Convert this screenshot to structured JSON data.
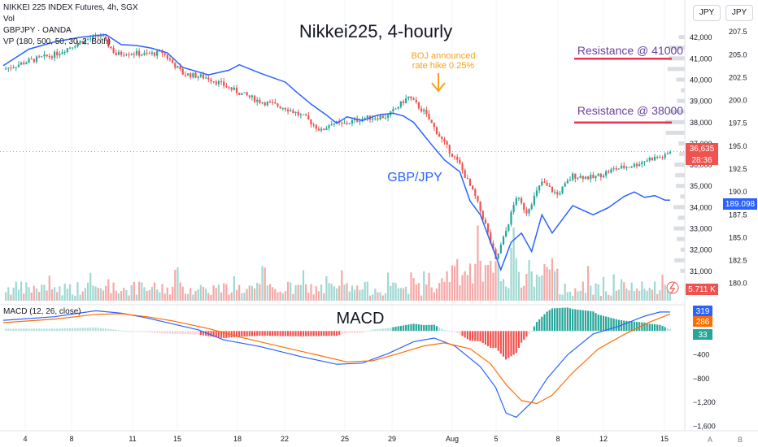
{
  "header": {
    "symbol_line": "NIKKEI 225 INDEX Futures, 4h, SGX",
    "vol_label": "Vol",
    "gbpjpy_label": "GBPJPY · OANDA",
    "vp_label": "VP (180, 500, 50, 30, 2, Both)",
    "macd_label": "MACD (12, 26, close)"
  },
  "units": {
    "left": "JPY",
    "right": "JPY"
  },
  "bottom_letters": [
    "A",
    "B"
  ],
  "annotations": {
    "title": "Nikkei225, 4-hourly",
    "boj_line1": "BOJ announced",
    "boj_line2": "rate hike 0.25%",
    "gbpjpy": "GBP/JPY",
    "res41000": "Resistance @ 41000",
    "res38000": "Resistance @ 38000",
    "macd_title": "MACD"
  },
  "colors": {
    "up": "#26a69a",
    "down": "#ef5350",
    "gbpjpy": "#2962ff",
    "macd": "#2962ff",
    "signal": "#ff6d00",
    "resistance": "#e8344e",
    "annotation": "#f7a21b",
    "res_text": "#6a3fa0"
  },
  "chart_data": [
    {
      "type": "candlestick",
      "name": "NIKKEI 225 INDEX Futures",
      "y_axis_ticks": [
        31000,
        32000,
        33000,
        34000,
        35000,
        36000,
        37000,
        38000,
        39000,
        40000,
        41000,
        42000
      ],
      "ylim": [
        30000,
        43000
      ],
      "x_tick_labels": [
        "4",
        "8",
        "11",
        "15",
        "18",
        "22",
        "25",
        "29",
        "Aug",
        "5",
        "8",
        "12",
        "15"
      ],
      "last_price": "36,635",
      "countdown": "28:36",
      "resistance_levels": [
        41000,
        38000
      ],
      "anchors": [
        [
          0,
          40500
        ],
        [
          10,
          40900
        ],
        [
          20,
          41200
        ],
        [
          30,
          41800
        ],
        [
          38,
          42100
        ],
        [
          44,
          41200
        ],
        [
          48,
          41300
        ],
        [
          56,
          41200
        ],
        [
          62,
          41300
        ],
        [
          70,
          40300
        ],
        [
          80,
          40100
        ],
        [
          92,
          39400
        ],
        [
          100,
          39000
        ],
        [
          110,
          38700
        ],
        [
          118,
          38200
        ],
        [
          124,
          37600
        ],
        [
          128,
          38000
        ],
        [
          132,
          37900
        ],
        [
          140,
          38200
        ],
        [
          150,
          38300
        ],
        [
          156,
          39000
        ],
        [
          158,
          39200
        ],
        [
          164,
          38500
        ],
        [
          172,
          37000
        ],
        [
          178,
          36000
        ],
        [
          184,
          34500
        ],
        [
          188,
          33200
        ],
        [
          192,
          31500
        ],
        [
          196,
          32900
        ],
        [
          200,
          34500
        ],
        [
          204,
          33800
        ],
        [
          210,
          35200
        ],
        [
          216,
          34600
        ],
        [
          222,
          35500
        ],
        [
          230,
          35400
        ],
        [
          238,
          35800
        ],
        [
          246,
          36000
        ],
        [
          252,
          36300
        ],
        [
          258,
          36400
        ],
        [
          260,
          36650
        ]
      ]
    },
    {
      "type": "line",
      "name": "GBP/JPY",
      "y_axis_ticks": [
        180.0,
        182.5,
        185.0,
        187.5,
        190.0,
        192.5,
        195.0,
        197.5,
        200.0,
        202.5,
        205.0,
        207.5
      ],
      "ylim": [
        179.0,
        209.2
      ],
      "last_value": "189.098",
      "points": [
        [
          0,
          203.8
        ],
        [
          10,
          205.6
        ],
        [
          20,
          206.4
        ],
        [
          30,
          206.9
        ],
        [
          40,
          207.2
        ],
        [
          46,
          206.1
        ],
        [
          52,
          206.0
        ],
        [
          58,
          205.7
        ],
        [
          64,
          205.2
        ],
        [
          70,
          203.6
        ],
        [
          80,
          202.8
        ],
        [
          88,
          203.3
        ],
        [
          92,
          203.9
        ],
        [
          100,
          203.0
        ],
        [
          110,
          202.0
        ],
        [
          114,
          201.0
        ],
        [
          120,
          199.6
        ],
        [
          126,
          198.4
        ],
        [
          130,
          197.5
        ],
        [
          134,
          198.2
        ],
        [
          140,
          197.8
        ],
        [
          146,
          198.4
        ],
        [
          152,
          198.6
        ],
        [
          156,
          198.3
        ],
        [
          160,
          197.6
        ],
        [
          166,
          195.5
        ],
        [
          172,
          193.5
        ],
        [
          178,
          192.2
        ],
        [
          182,
          189.0
        ],
        [
          186,
          187.5
        ],
        [
          190,
          184.5
        ],
        [
          194,
          181.5
        ],
        [
          198,
          184.5
        ],
        [
          202,
          185.5
        ],
        [
          206,
          183.5
        ],
        [
          210,
          187.5
        ],
        [
          214,
          185.5
        ],
        [
          218,
          187.0
        ],
        [
          222,
          188.5
        ],
        [
          226,
          188.0
        ],
        [
          230,
          187.5
        ],
        [
          236,
          188.3
        ],
        [
          242,
          189.5
        ],
        [
          246,
          190.0
        ],
        [
          250,
          189.4
        ],
        [
          254,
          189.6
        ],
        [
          258,
          189.1
        ],
        [
          260,
          189.1
        ]
      ]
    },
    {
      "type": "bar",
      "name": "Vol",
      "last_value": "5.711 K"
    },
    {
      "type": "macd",
      "name": "MACD (12, 26, close)",
      "y_axis_ticks": [
        -400,
        -800,
        -1200,
        -1600
      ],
      "y_tick_labels": [
        "−400",
        "−800",
        "−1,200",
        "−1,600"
      ],
      "ylim": [
        -1650,
        400
      ],
      "macd_value": "319",
      "signal_value": "286",
      "histogram_value": "33",
      "macd_line": [
        [
          0,
          180
        ],
        [
          20,
          240
        ],
        [
          36,
          340
        ],
        [
          46,
          300
        ],
        [
          56,
          220
        ],
        [
          62,
          160
        ],
        [
          76,
          20
        ],
        [
          86,
          -150
        ],
        [
          100,
          -260
        ],
        [
          116,
          -430
        ],
        [
          130,
          -560
        ],
        [
          140,
          -540
        ],
        [
          150,
          -380
        ],
        [
          160,
          -180
        ],
        [
          168,
          -120
        ],
        [
          176,
          -250
        ],
        [
          186,
          -600
        ],
        [
          192,
          -950
        ],
        [
          196,
          -1380
        ],
        [
          200,
          -1450
        ],
        [
          206,
          -1200
        ],
        [
          212,
          -800
        ],
        [
          220,
          -400
        ],
        [
          230,
          -50
        ],
        [
          240,
          80
        ],
        [
          250,
          250
        ],
        [
          256,
          320
        ],
        [
          260,
          319
        ]
      ],
      "signal_line": [
        [
          0,
          140
        ],
        [
          20,
          200
        ],
        [
          36,
          280
        ],
        [
          46,
          290
        ],
        [
          56,
          240
        ],
        [
          66,
          170
        ],
        [
          80,
          40
        ],
        [
          92,
          -100
        ],
        [
          108,
          -260
        ],
        [
          122,
          -400
        ],
        [
          134,
          -520
        ],
        [
          144,
          -500
        ],
        [
          154,
          -380
        ],
        [
          164,
          -250
        ],
        [
          172,
          -200
        ],
        [
          182,
          -300
        ],
        [
          190,
          -550
        ],
        [
          196,
          -900
        ],
        [
          202,
          -1170
        ],
        [
          208,
          -1220
        ],
        [
          214,
          -1080
        ],
        [
          222,
          -700
        ],
        [
          232,
          -300
        ],
        [
          242,
          -60
        ],
        [
          252,
          150
        ],
        [
          260,
          286
        ]
      ]
    }
  ]
}
